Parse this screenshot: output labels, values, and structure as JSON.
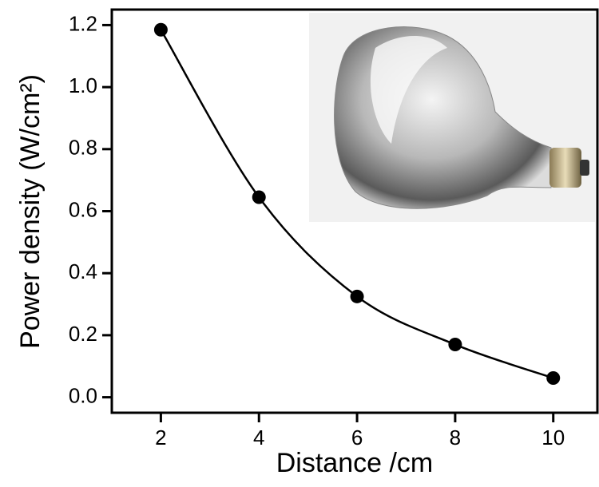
{
  "chart_data": {
    "type": "line",
    "xlabel": "Distance /cm",
    "ylabel": "Power density (W/cm²)",
    "x": [
      2,
      4,
      6,
      8,
      10
    ],
    "series": [
      {
        "color": "#000000",
        "values": [
          1.185,
          0.645,
          0.325,
          0.17,
          0.062
        ]
      }
    ],
    "xlim": [
      1,
      10.9
    ],
    "ylim": [
      -0.05,
      1.25
    ],
    "xticks": [
      2,
      4,
      6,
      8,
      10
    ],
    "yticks": [
      {
        "value": 0,
        "label": "0.0"
      },
      {
        "value": 0.2,
        "label": "0.2"
      },
      {
        "value": 0.4,
        "label": "0.4"
      },
      {
        "value": 0.6,
        "label": "0.6"
      },
      {
        "value": 0.8,
        "label": "0.8"
      },
      {
        "value": 1.0,
        "label": "1.0"
      },
      {
        "value": 1.2,
        "label": "1.2"
      }
    ]
  }
}
